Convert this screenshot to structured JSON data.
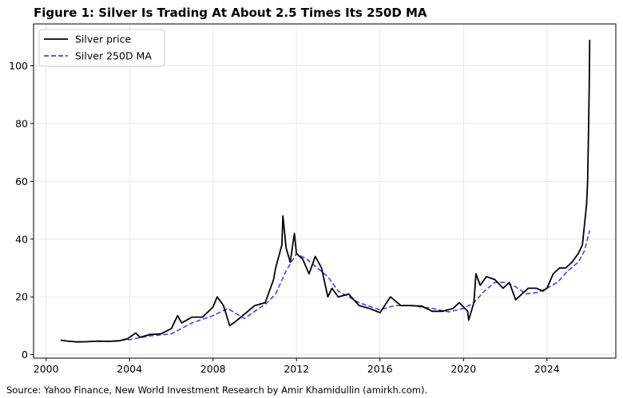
{
  "chart_data": {
    "type": "line",
    "title": "Figure 1: Silver Is Trading At About 2.5 Times Its 250D MA",
    "source": "Source: Yahoo Finance, New World Investment Research by Amir Khamidullin (amirkh.com).",
    "xlabel": "",
    "ylabel": "",
    "xlim": [
      1999.4,
      2027.3
    ],
    "ylim": [
      -1.2,
      114.5
    ],
    "x_ticks": [
      2000,
      2004,
      2008,
      2012,
      2016,
      2020,
      2024
    ],
    "y_ticks": [
      0,
      20,
      40,
      60,
      80,
      100
    ],
    "grid": true,
    "legend_position": "top-left",
    "series": [
      {
        "name": "Silver price",
        "color": "#000000",
        "style": "solid",
        "x": [
          2000.7,
          2001.0,
          2001.5,
          2002.0,
          2002.5,
          2003.0,
          2003.5,
          2003.9,
          2004.0,
          2004.3,
          2004.5,
          2005.0,
          2005.5,
          2006.0,
          2006.3,
          2006.5,
          2007.0,
          2007.5,
          2008.0,
          2008.2,
          2008.5,
          2008.8,
          2009.0,
          2009.5,
          2010.0,
          2010.5,
          2010.9,
          2011.0,
          2011.3,
          2011.35,
          2011.5,
          2011.7,
          2011.9,
          2012.0,
          2012.3,
          2012.6,
          2012.9,
          2013.2,
          2013.5,
          2013.7,
          2014.0,
          2014.5,
          2015.0,
          2015.5,
          2016.0,
          2016.5,
          2017.0,
          2017.5,
          2018.0,
          2018.5,
          2019.0,
          2019.5,
          2019.8,
          2020.2,
          2020.25,
          2020.5,
          2020.6,
          2020.8,
          2021.1,
          2021.5,
          2021.9,
          2022.2,
          2022.5,
          2022.8,
          2023.1,
          2023.5,
          2023.8,
          2024.0,
          2024.3,
          2024.6,
          2024.9,
          2025.2,
          2025.5,
          2025.7,
          2025.8,
          2025.9,
          2025.95,
          2026.0,
          2026.03,
          2026.05
        ],
        "y": [
          5.0,
          4.7,
          4.4,
          4.5,
          4.7,
          4.6,
          4.8,
          5.5,
          6.0,
          7.5,
          6.0,
          7.0,
          7.2,
          9.0,
          13.5,
          11.0,
          13.0,
          13.0,
          16.5,
          20.0,
          17.0,
          10.0,
          11.0,
          14.0,
          17.0,
          18.0,
          26.0,
          30.0,
          38.0,
          48.0,
          37.0,
          32.0,
          42.0,
          35.0,
          33.0,
          28.0,
          34.0,
          30.0,
          20.0,
          23.0,
          20.0,
          21.0,
          17.0,
          16.0,
          14.5,
          20.0,
          17.0,
          17.0,
          16.8,
          15.0,
          15.0,
          16.0,
          18.0,
          15.0,
          12.0,
          18.0,
          28.0,
          24.0,
          27.0,
          26.0,
          23.0,
          25.0,
          19.0,
          21.0,
          23.0,
          23.0,
          22.0,
          23.0,
          28.0,
          30.0,
          30.0,
          32.0,
          35.0,
          38.0,
          45.0,
          52.0,
          60.0,
          80.0,
          95.0,
          109.0
        ]
      },
      {
        "name": "Silver 250D MA",
        "color": "#4444ee",
        "style": "dashed",
        "x": [
          2001.5,
          2003.0,
          2004.0,
          2005.0,
          2006.0,
          2007.0,
          2008.0,
          2008.7,
          2009.5,
          2010.0,
          2010.6,
          2011.0,
          2011.5,
          2012.0,
          2012.5,
          2013.0,
          2013.5,
          2014.0,
          2015.0,
          2016.0,
          2016.7,
          2017.5,
          2018.5,
          2019.3,
          2020.0,
          2020.5,
          2021.0,
          2021.5,
          2022.0,
          2022.5,
          2023.0,
          2023.5,
          2024.0,
          2024.5,
          2025.0,
          2025.5,
          2025.8,
          2026.05
        ],
        "y": [
          4.5,
          4.6,
          5.2,
          6.5,
          7.2,
          11.0,
          13.5,
          16.0,
          12.5,
          15.0,
          18.0,
          21.0,
          29.0,
          35.0,
          33.0,
          30.0,
          27.0,
          22.0,
          18.0,
          15.5,
          17.0,
          17.0,
          16.0,
          14.8,
          16.0,
          18.0,
          22.0,
          25.0,
          25.0,
          23.5,
          21.0,
          21.5,
          23.0,
          25.0,
          29.0,
          32.0,
          36.0,
          43.0
        ]
      }
    ]
  }
}
